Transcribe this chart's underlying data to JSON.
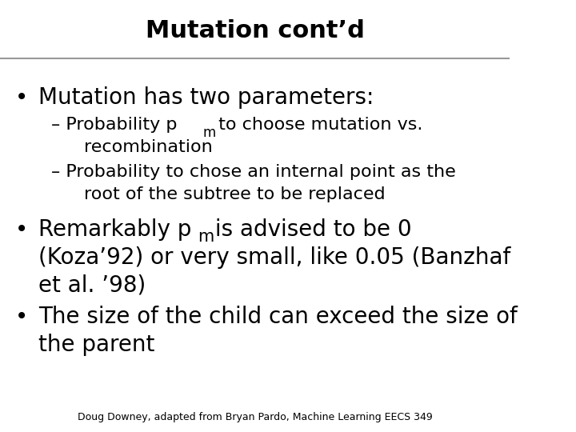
{
  "title": "Mutation cont’d",
  "title_fontsize": 22,
  "title_fontweight": "bold",
  "bg_color": "#ffffff",
  "text_color": "#000000",
  "line_color": "#999999",
  "footer": "Doug Downey, adapted from Bryan Pardo, Machine Learning EECS 349",
  "footer_fontsize": 9,
  "bullet1": "Mutation has two parameters:",
  "bullet1_fontsize": 20,
  "sub_fontsize": 16,
  "bullet2_fontsize": 20,
  "bullet3_fontsize": 20
}
